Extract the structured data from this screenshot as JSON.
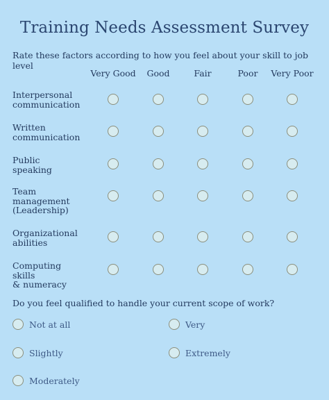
{
  "title": "Training Needs Assessment Survey",
  "question1": {
    "text": "Rate these factors according to how you feel about your skill to job level",
    "columns": [
      "Very Good",
      "Good",
      "Fair",
      "Poor",
      "Very Poor"
    ],
    "rows": [
      [
        "Interpersonal",
        "communication"
      ],
      [
        "Written",
        "communication"
      ],
      [
        "Public speaking"
      ],
      [
        "Team",
        "management",
        "(Leadership)"
      ],
      [
        "Organizational",
        "abilities"
      ],
      [
        "Computing skills",
        "& numeracy"
      ]
    ]
  },
  "question2": {
    "text": "Do you feel qualified to handle your current scope of work?",
    "options": [
      "Not at all",
      "Very",
      "Slightly",
      "Extremely",
      "Moderately"
    ]
  }
}
